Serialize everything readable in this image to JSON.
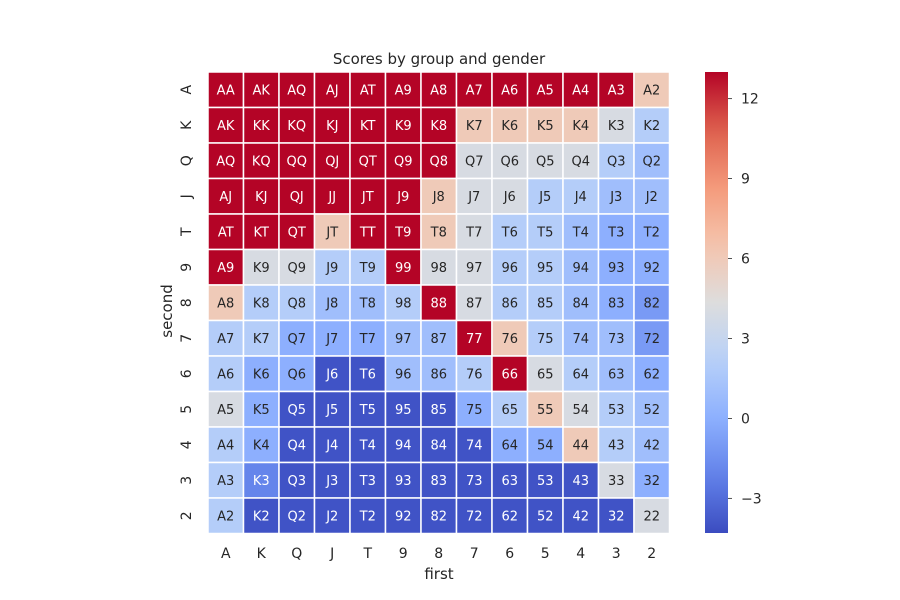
{
  "chart_data": {
    "type": "heatmap",
    "title": "Scores by group and gender",
    "xlabel": "first",
    "ylabel": "second",
    "x_categories": [
      "A",
      "K",
      "Q",
      "J",
      "T",
      "9",
      "8",
      "7",
      "6",
      "5",
      "4",
      "3",
      "2"
    ],
    "y_categories": [
      "A",
      "K",
      "Q",
      "J",
      "T",
      "9",
      "8",
      "7",
      "6",
      "5",
      "4",
      "3",
      "2"
    ],
    "colormap": "coolwarm",
    "vmin": -4.3,
    "vmax": 13,
    "colorbar_ticks": [
      12,
      9,
      6,
      3,
      0,
      -3
    ],
    "colorbar_tick_labels": [
      "12",
      "9",
      "6",
      "3",
      "0",
      "−3"
    ],
    "labels": [
      [
        "AA",
        "AK",
        "AQ",
        "AJ",
        "AT",
        "A9",
        "A8",
        "A7",
        "A6",
        "A5",
        "A4",
        "A3",
        "A2"
      ],
      [
        "AK",
        "KK",
        "KQ",
        "KJ",
        "KT",
        "K9",
        "K8",
        "K7",
        "K6",
        "K5",
        "K4",
        "K3",
        "K2"
      ],
      [
        "AQ",
        "KQ",
        "QQ",
        "QJ",
        "QT",
        "Q9",
        "Q8",
        "Q7",
        "Q6",
        "Q5",
        "Q4",
        "Q3",
        "Q2"
      ],
      [
        "AJ",
        "KJ",
        "QJ",
        "JJ",
        "JT",
        "J9",
        "J8",
        "J7",
        "J6",
        "J5",
        "J4",
        "J3",
        "J2"
      ],
      [
        "AT",
        "KT",
        "QT",
        "JT",
        "TT",
        "T9",
        "T8",
        "T7",
        "T6",
        "T5",
        "T4",
        "T3",
        "T2"
      ],
      [
        "A9",
        "K9",
        "Q9",
        "J9",
        "T9",
        "99",
        "98",
        "97",
        "96",
        "95",
        "94",
        "93",
        "92"
      ],
      [
        "A8",
        "K8",
        "Q8",
        "J8",
        "T8",
        "98",
        "88",
        "87",
        "86",
        "85",
        "84",
        "83",
        "82"
      ],
      [
        "A7",
        "K7",
        "Q7",
        "J7",
        "T7",
        "97",
        "87",
        "77",
        "76",
        "75",
        "74",
        "73",
        "72"
      ],
      [
        "A6",
        "K6",
        "Q6",
        "J6",
        "T6",
        "96",
        "86",
        "76",
        "66",
        "65",
        "64",
        "63",
        "62"
      ],
      [
        "A5",
        "K5",
        "Q5",
        "J5",
        "T5",
        "95",
        "85",
        "75",
        "65",
        "55",
        "54",
        "53",
        "52"
      ],
      [
        "A4",
        "K4",
        "Q4",
        "J4",
        "T4",
        "94",
        "84",
        "74",
        "64",
        "54",
        "44",
        "43",
        "42"
      ],
      [
        "A3",
        "K3",
        "Q3",
        "J3",
        "T3",
        "93",
        "83",
        "73",
        "63",
        "53",
        "43",
        "33",
        "32"
      ],
      [
        "A2",
        "K2",
        "Q2",
        "J2",
        "T2",
        "92",
        "82",
        "72",
        "62",
        "52",
        "42",
        "32",
        "22"
      ]
    ],
    "values": [
      [
        13,
        13,
        13,
        13,
        13,
        13,
        13,
        13,
        13,
        13,
        13,
        13,
        6
      ],
      [
        13,
        13,
        13,
        13,
        13,
        13,
        13,
        6,
        6,
        6,
        6,
        4,
        2
      ],
      [
        13,
        13,
        13,
        13,
        13,
        13,
        13,
        4,
        4,
        4,
        4,
        2,
        1
      ],
      [
        13,
        13,
        13,
        13,
        13,
        13,
        6,
        4,
        4,
        2,
        2,
        1,
        1
      ],
      [
        13,
        13,
        13,
        6,
        13,
        13,
        6,
        4,
        2,
        2,
        1,
        0,
        0
      ],
      [
        13,
        4,
        4,
        2,
        2,
        13,
        4,
        4,
        2,
        2,
        1,
        0,
        0
      ],
      [
        6,
        2,
        2,
        1,
        1,
        2,
        13,
        4,
        2,
        2,
        1,
        0,
        -1
      ],
      [
        2,
        2,
        0,
        0,
        0,
        1,
        1,
        13,
        6,
        2,
        1,
        1,
        -1
      ],
      [
        2,
        0,
        0,
        -4,
        -4,
        1,
        1,
        2,
        13,
        4,
        2,
        1,
        0
      ],
      [
        4,
        0,
        -4,
        -4,
        -4,
        -4,
        -4,
        0,
        2,
        6,
        4,
        2,
        1
      ],
      [
        2,
        0,
        -4,
        -4,
        -4,
        -4,
        -4,
        -4,
        0,
        0,
        6,
        2,
        1
      ],
      [
        2,
        -2,
        -4,
        -4,
        -4,
        -4,
        -4,
        -4,
        -4,
        -4,
        -4,
        4,
        0
      ],
      [
        2,
        -4,
        -4,
        -4,
        -4,
        -4,
        -4,
        -4,
        -4,
        -4,
        -4,
        -4,
        4
      ]
    ]
  }
}
